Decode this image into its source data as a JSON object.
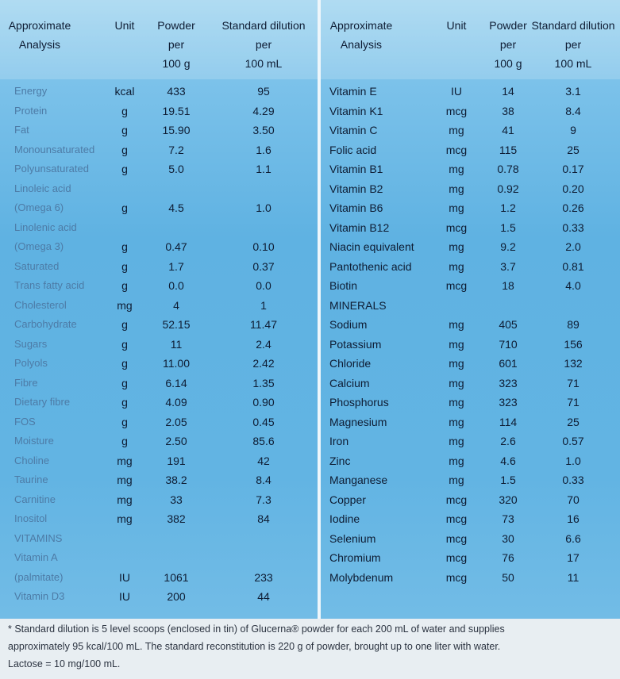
{
  "left_table": {
    "headers": [
      [
        "Approximate",
        "Analysis"
      ],
      [
        "Unit"
      ],
      [
        "Powder",
        "per",
        "100 g"
      ],
      [
        "Standard dilution",
        "per",
        "100 mL"
      ]
    ],
    "rows": [
      {
        "name": "Energy",
        "unit": "kcal",
        "powder": "433",
        "dilution": "95"
      },
      {
        "name": "Protein",
        "unit": "g",
        "powder": "19.51",
        "dilution": "4.29"
      },
      {
        "name": "Fat",
        "unit": "g",
        "powder": "15.90",
        "dilution": "3.50"
      },
      {
        "name": "Monounsaturated",
        "unit": "g",
        "powder": "7.2",
        "dilution": "1.6"
      },
      {
        "name": "Polyunsaturated",
        "unit": "g",
        "powder": "5.0",
        "dilution": "1.1"
      },
      {
        "name": "Linoleic acid"
      },
      {
        "name": "(Omega 6)",
        "unit": "g",
        "powder": "4.5",
        "dilution": "1.0"
      },
      {
        "name": "Linolenic acid"
      },
      {
        "name": "(Omega 3)",
        "unit": "g",
        "powder": "0.47",
        "dilution": "0.10"
      },
      {
        "name": "Saturated",
        "unit": "g",
        "powder": "1.7",
        "dilution": "0.37"
      },
      {
        "name": "Trans fatty acid",
        "unit": "g",
        "powder": "0.0",
        "dilution": "0.0"
      },
      {
        "name": "Cholesterol",
        "unit": "mg",
        "powder": "4",
        "dilution": "1"
      },
      {
        "name": "Carbohydrate",
        "unit": "g",
        "powder": "52.15",
        "dilution": "11.47"
      },
      {
        "name": "Sugars",
        "unit": "g",
        "powder": "11",
        "dilution": "2.4"
      },
      {
        "name": "Polyols",
        "unit": "g",
        "powder": "11.00",
        "dilution": "2.42"
      },
      {
        "name": "Fibre",
        "unit": "g",
        "powder": "6.14",
        "dilution": "1.35"
      },
      {
        "name": "Dietary fibre",
        "unit": "g",
        "powder": "4.09",
        "dilution": "0.90"
      },
      {
        "name": "FOS",
        "unit": "g",
        "powder": "2.05",
        "dilution": "0.45"
      },
      {
        "name": "Moisture",
        "unit": "g",
        "powder": "2.50",
        "dilution": "85.6"
      },
      {
        "name": "Choline",
        "unit": "mg",
        "powder": "191",
        "dilution": "42"
      },
      {
        "name": "Taurine",
        "unit": "mg",
        "powder": "38.2",
        "dilution": "8.4"
      },
      {
        "name": "Carnitine",
        "unit": "mg",
        "powder": "33",
        "dilution": "7.3"
      },
      {
        "name": "Inositol",
        "unit": "mg",
        "powder": "382",
        "dilution": "84"
      },
      {
        "name": "VITAMINS"
      },
      {
        "name": "Vitamin A"
      },
      {
        "name": "(palmitate)",
        "unit": "IU",
        "powder": "1061",
        "dilution": "233"
      },
      {
        "name": "Vitamin D3",
        "unit": "IU",
        "powder": "200",
        "dilution": "44"
      }
    ]
  },
  "right_table": {
    "headers": [
      [
        "Approximate",
        "Analysis"
      ],
      [
        "Unit"
      ],
      [
        "Powder",
        "per",
        "100 g"
      ],
      [
        "Standard dilution",
        "per",
        "100 mL"
      ]
    ],
    "rows": [
      {
        "name": "Vitamin E",
        "unit": "IU",
        "powder": "14",
        "dilution": "3.1"
      },
      {
        "name": "Vitamin K1",
        "unit": "mcg",
        "powder": "38",
        "dilution": "8.4"
      },
      {
        "name": "Vitamin C",
        "unit": "mg",
        "powder": "41",
        "dilution": "9"
      },
      {
        "name": "Folic acid",
        "unit": "mcg",
        "powder": "115",
        "dilution": "25"
      },
      {
        "name": "Vitamin B1",
        "unit": "mg",
        "powder": "0.78",
        "dilution": "0.17"
      },
      {
        "name": "Vitamin B2",
        "unit": "mg",
        "powder": "0.92",
        "dilution": "0.20"
      },
      {
        "name": "Vitamin B6",
        "unit": "mg",
        "powder": "1.2",
        "dilution": "0.26"
      },
      {
        "name": "Vitamin B12",
        "unit": "mcg",
        "powder": "1.5",
        "dilution": "0.33"
      },
      {
        "name": "Niacin equivalent",
        "unit": "mg",
        "powder": "9.2",
        "dilution": "2.0"
      },
      {
        "name": "Pantothenic acid",
        "unit": "mg",
        "powder": "3.7",
        "dilution": "0.81"
      },
      {
        "name": "Biotin",
        "unit": "mcg",
        "powder": "18",
        "dilution": "4.0"
      },
      {
        "name": "MINERALS"
      },
      {
        "name": "Sodium",
        "unit": "mg",
        "powder": "405",
        "dilution": "89"
      },
      {
        "name": "Potassium",
        "unit": "mg",
        "powder": "710",
        "dilution": "156"
      },
      {
        "name": "Chloride",
        "unit": "mg",
        "powder": "601",
        "dilution": "132"
      },
      {
        "name": "Calcium",
        "unit": "mg",
        "powder": "323",
        "dilution": "71"
      },
      {
        "name": "Phosphorus",
        "unit": "mg",
        "powder": "323",
        "dilution": "71"
      },
      {
        "name": "Magnesium",
        "unit": "mg",
        "powder": "114",
        "dilution": "25"
      },
      {
        "name": "Iron",
        "unit": "mg",
        "powder": "2.6",
        "dilution": "0.57"
      },
      {
        "name": "Zinc",
        "unit": "mg",
        "powder": "4.6",
        "dilution": "1.0"
      },
      {
        "name": "Manganese",
        "unit": "mg",
        "powder": "1.5",
        "dilution": "0.33"
      },
      {
        "name": "Copper",
        "unit": "mcg",
        "powder": "320",
        "dilution": "70"
      },
      {
        "name": "Iodine",
        "unit": "mcg",
        "powder": "73",
        "dilution": "16"
      },
      {
        "name": "Selenium",
        "unit": "mcg",
        "powder": "30",
        "dilution": "6.6"
      },
      {
        "name": "Chromium",
        "unit": "mcg",
        "powder": "76",
        "dilution": "17"
      },
      {
        "name": "Molybdenum",
        "unit": "mcg",
        "powder": "50",
        "dilution": "11"
      }
    ]
  },
  "footnote": [
    "* Standard dilution is 5 level scoops (enclosed in tin) of Glucerna® powder for each 200 mL of water and supplies",
    "approximately 95 kcal/100 mL. The standard reconstitution is 220 g of powder, brought up to one liter with water.",
    "Lactose = 10 mg/100 mL."
  ]
}
